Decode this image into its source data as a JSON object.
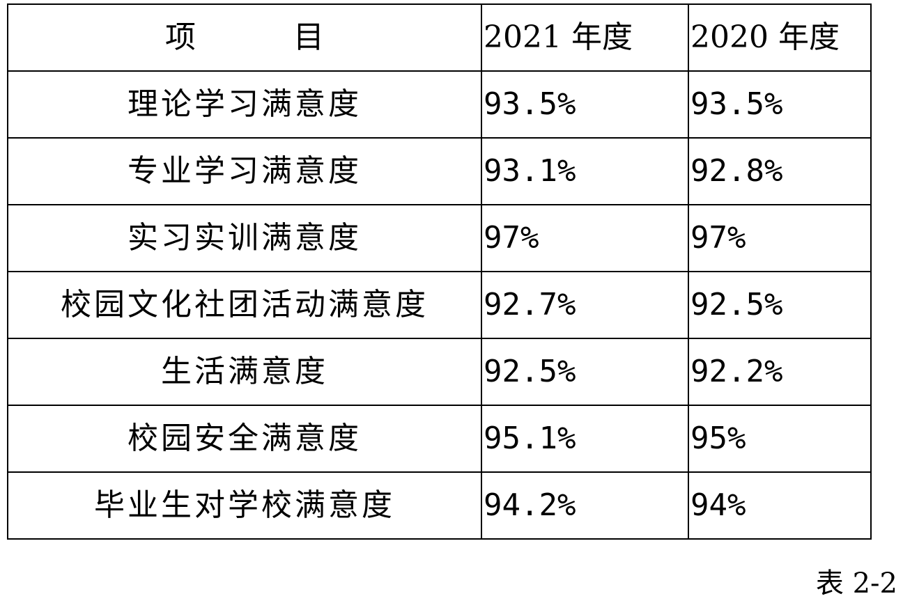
{
  "table": {
    "header": {
      "item_part1": "项",
      "item_part2": "目",
      "year_2021": "2021 年度",
      "year_2020": "2020 年度"
    },
    "rows": [
      {
        "item": "理论学习满意度",
        "y2021": "93.5%",
        "y2020": "93.5%"
      },
      {
        "item": "专业学习满意度",
        "y2021": "93.1%",
        "y2020": "92.8%"
      },
      {
        "item": "实习实训满意度",
        "y2021": "97%",
        "y2020": "97%"
      },
      {
        "item": "校园文化社团活动满意度",
        "y2021": "92.7%",
        "y2020": "92.5%"
      },
      {
        "item": "生活满意度",
        "y2021": "92.5%",
        "y2020": "92.2%"
      },
      {
        "item": "校园安全满意度",
        "y2021": "95.1%",
        "y2020": "95%"
      },
      {
        "item": "毕业生对学校满意度",
        "y2021": "94.2%",
        "y2020": "94%"
      }
    ]
  },
  "caption": "表 2-2"
}
